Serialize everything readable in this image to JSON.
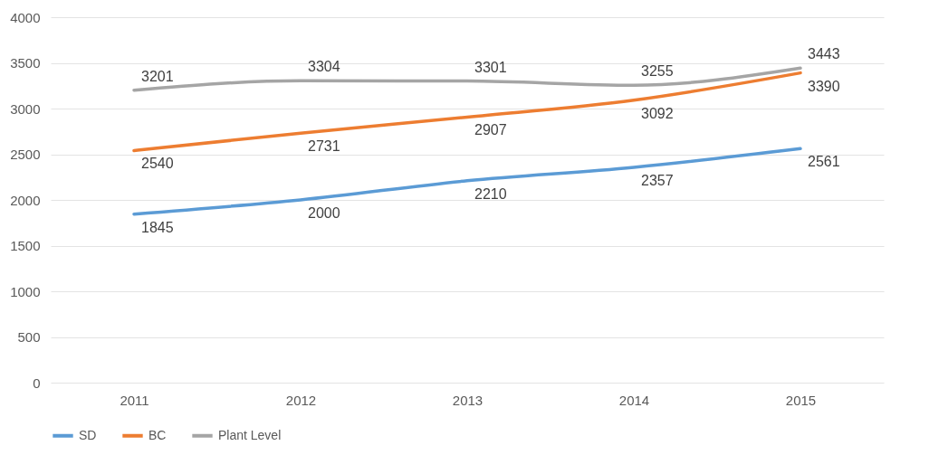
{
  "chart_data": {
    "type": "line",
    "categories": [
      "2011",
      "2012",
      "2013",
      "2014",
      "2015"
    ],
    "series": [
      {
        "name": "SD",
        "color": "#5b9bd5",
        "values": [
          1845,
          2000,
          2210,
          2357,
          2561
        ]
      },
      {
        "name": "BC",
        "color": "#ed7d31",
        "values": [
          2540,
          2731,
          2907,
          3092,
          3390
        ]
      },
      {
        "name": "Plant Level",
        "color": "#a5a5a5",
        "values": [
          3201,
          3304,
          3301,
          3255,
          3443
        ]
      }
    ],
    "ylim": [
      0,
      4000
    ],
    "yticks": [
      0,
      500,
      1000,
      1500,
      2000,
      2500,
      3000,
      3500,
      4000
    ],
    "grid": "y",
    "legend": "bottom",
    "data_labels": true,
    "marker": "none",
    "line_style": "solid"
  }
}
